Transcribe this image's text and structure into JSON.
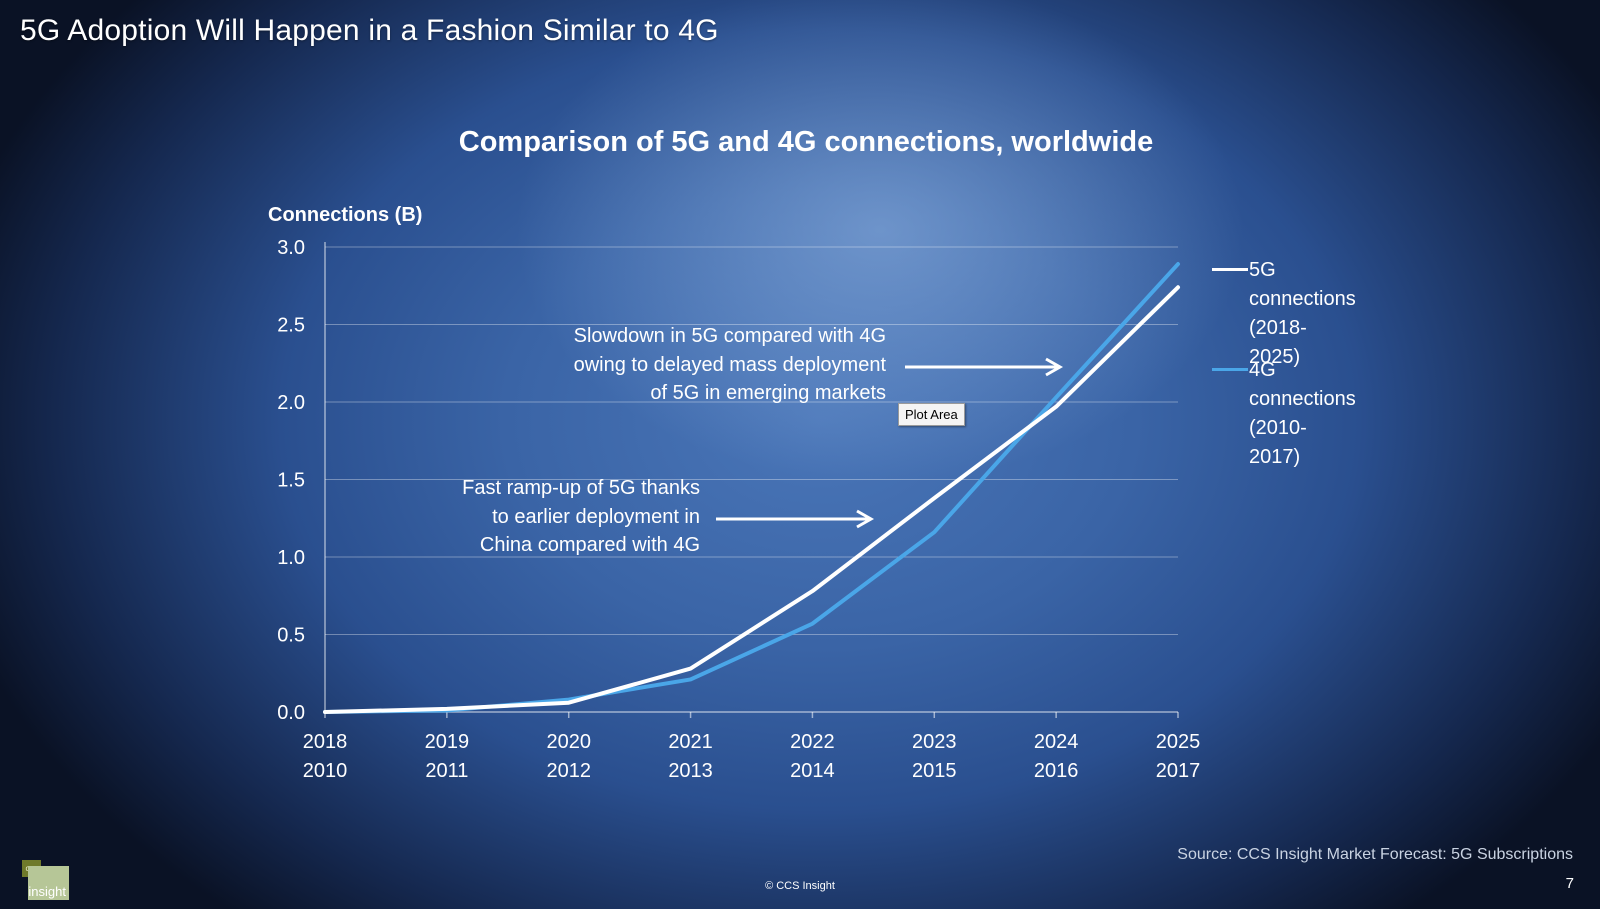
{
  "slide": {
    "title": "5G Adoption Will Happen in a Fashion Similar to 4G",
    "source": "Source: CCS Insight Market Forecast: 5G Subscriptions",
    "page_number": "7",
    "copyright": "© CCS Insight",
    "logo": {
      "small_text": "ccs",
      "big_text": "insight"
    },
    "tooltip": "Plot Area"
  },
  "chart_data": {
    "type": "line",
    "title": "Comparison of 5G and 4G connections, worldwide",
    "ylabel": "Connections (B)",
    "xlabel": "",
    "ylim": [
      0,
      3.0
    ],
    "yticks": [
      "0.0",
      "0.5",
      "1.0",
      "1.5",
      "2.0",
      "2.5",
      "3.0"
    ],
    "ytick_values": [
      0,
      0.5,
      1.0,
      1.5,
      2.0,
      2.5,
      3.0
    ],
    "categories_5g": [
      "2018",
      "2019",
      "2020",
      "2021",
      "2022",
      "2023",
      "2024",
      "2025"
    ],
    "categories_4g": [
      "2010",
      "2011",
      "2012",
      "2013",
      "2014",
      "2015",
      "2016",
      "2017"
    ],
    "grid": true,
    "legend_position": "right",
    "series": [
      {
        "name": "5G connections (2018-2025)",
        "name_line1": "5G connections",
        "name_line2": "(2018-2025)",
        "color": "#ffffff",
        "values": [
          0.0,
          0.02,
          0.06,
          0.28,
          0.78,
          1.38,
          1.97,
          2.74
        ]
      },
      {
        "name": "4G connections (2010-2017)",
        "name_line1": "4G connections",
        "name_line2": "(2010-2017)",
        "color": "#4aa6e8",
        "values": [
          0.0,
          0.01,
          0.08,
          0.21,
          0.57,
          1.16,
          2.03,
          2.89
        ]
      }
    ],
    "annotations": [
      {
        "id": "slowdown",
        "lines": [
          "Slowdown in 5G compared with 4G",
          "owing to delayed mass deployment",
          "of 5G in emerging markets"
        ]
      },
      {
        "id": "ramp",
        "lines": [
          "Fast ramp-up of 5G thanks",
          "to earlier deployment in",
          "China compared with 4G"
        ]
      }
    ]
  }
}
